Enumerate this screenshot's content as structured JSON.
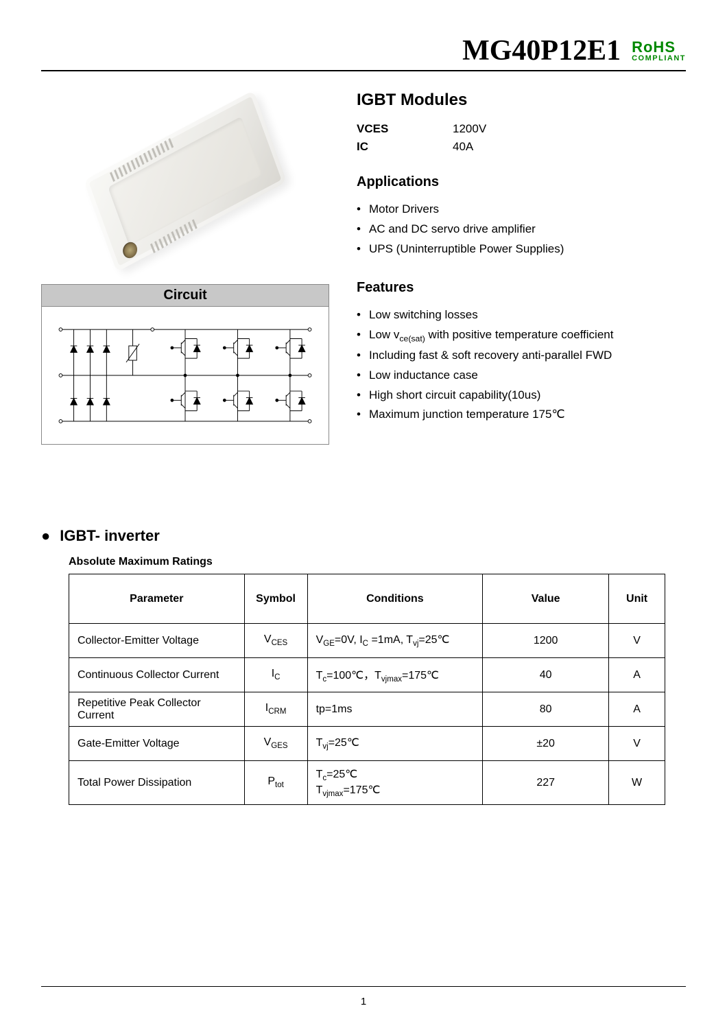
{
  "header": {
    "part_number": "MG40P12E1",
    "rohs_line1": "RoHS",
    "rohs_line2": "COMPLIANT"
  },
  "overview": {
    "title": "IGBT    Modules",
    "specs": [
      {
        "label": "VCES",
        "value": "1200V"
      },
      {
        "label": "IC",
        "value": "40A"
      }
    ],
    "applications_title": "Applications",
    "applications": [
      "Motor Drivers",
      "AC and DC servo drive amplifier",
      "UPS (Uninterruptible Power Supplies)"
    ],
    "features_title": "Features",
    "features_html": [
      "Low switching losses",
      "Low v<sub>ce(sat)</sub> with positive temperature coefficient",
      "Including fast & soft recovery anti-parallel FWD",
      "Low inductance case",
      "High short circuit capability(10us)",
      "Maximum junction temperature 175℃"
    ]
  },
  "circuit": {
    "header": "Circuit"
  },
  "ratings": {
    "heading": "IGBT- inverter",
    "table_title": "Absolute Maximum Ratings",
    "columns": [
      "Parameter",
      "Symbol",
      "Conditions",
      "Value",
      "Unit"
    ],
    "rows": [
      {
        "parameter": "Collector-Emitter Voltage",
        "symbol_html": "V<sub>CES</sub>",
        "conditions_html": "V<sub>GE</sub>=0V, I<sub>C</sub> =1mA, T<sub>vj</sub>=25℃",
        "value": "1200",
        "unit": "V"
      },
      {
        "parameter": "Continuous Collector Current",
        "symbol_html": "I<sub>C</sub>",
        "conditions_html": "T<sub>c</sub>=100℃，T<sub>vjmax</sub>=175℃",
        "value": "40",
        "unit": "A"
      },
      {
        "parameter": "Repetitive Peak Collector Current",
        "symbol_html": "I<sub>CRM</sub>",
        "conditions_html": "tp=1ms",
        "value": "80",
        "unit": "A"
      },
      {
        "parameter": "Gate-Emitter Voltage",
        "symbol_html": "V<sub>GES</sub>",
        "conditions_html": "T<sub>vj</sub>=25℃",
        "value": "±20",
        "unit": "V"
      },
      {
        "parameter": "Total Power Dissipation",
        "symbol_html": "P<sub>tot</sub>",
        "conditions_html": "T<sub>c</sub>=25℃<br>T<sub>vjmax</sub>=175℃",
        "value": "227",
        "unit": "W"
      }
    ]
  },
  "page_number": "1",
  "colors": {
    "rohs_green": "#008800",
    "circuit_header_bg": "#c8c8c8",
    "border": "#000000"
  }
}
